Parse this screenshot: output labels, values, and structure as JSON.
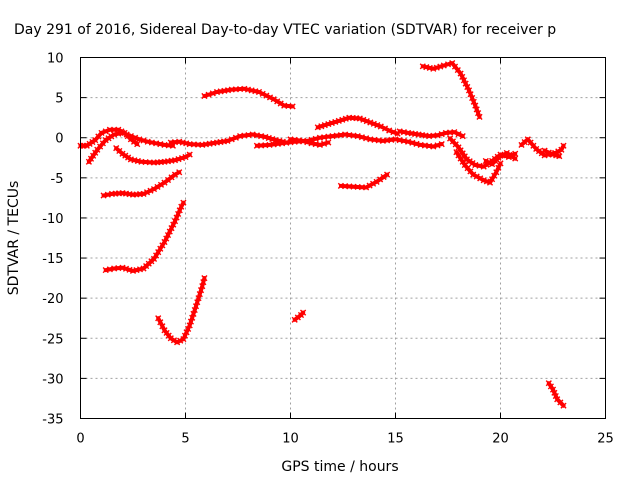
{
  "chart_data": {
    "type": "scatter",
    "title": "Day 291 of 2016, Sidereal Day-to-day VTEC variation (SDTVAR) for receiver p",
    "xlabel": "GPS time / hours",
    "ylabel": "SDTVAR / TECUs",
    "xlim": [
      0,
      25
    ],
    "ylim": [
      -35,
      10
    ],
    "x_ticks": [
      0,
      5,
      10,
      15,
      20,
      25
    ],
    "y_ticks": [
      -35,
      -30,
      -25,
      -20,
      -15,
      -10,
      -5,
      0,
      5,
      10
    ],
    "grid": true,
    "marker": "cross",
    "color": "#ff0000",
    "tracks": [
      [
        [
          0.0,
          -1.0
        ],
        [
          0.3,
          -1.0
        ],
        [
          0.7,
          -0.3
        ],
        [
          1.0,
          0.6
        ],
        [
          1.4,
          1.0
        ],
        [
          1.8,
          1.0
        ],
        [
          2.1,
          0.6
        ],
        [
          2.4,
          -0.2
        ],
        [
          2.7,
          -0.8
        ]
      ],
      [
        [
          0.4,
          -3.0
        ],
        [
          0.8,
          -1.5
        ],
        [
          1.2,
          -0.3
        ],
        [
          1.6,
          0.4
        ],
        [
          2.0,
          0.6
        ],
        [
          2.4,
          0.2
        ],
        [
          2.8,
          -0.2
        ],
        [
          3.2,
          -0.5
        ],
        [
          3.6,
          -0.7
        ],
        [
          4.0,
          -0.9
        ],
        [
          4.4,
          -1.0
        ]
      ],
      [
        [
          1.7,
          -1.3
        ],
        [
          2.0,
          -2.0
        ],
        [
          2.4,
          -2.7
        ],
        [
          2.9,
          -3.0
        ],
        [
          3.5,
          -3.1
        ],
        [
          4.0,
          -3.0
        ],
        [
          4.5,
          -2.8
        ],
        [
          5.0,
          -2.4
        ],
        [
          5.2,
          -2.1
        ]
      ],
      [
        [
          1.1,
          -7.2
        ],
        [
          1.5,
          -7.0
        ],
        [
          2.0,
          -6.9
        ],
        [
          2.5,
          -7.1
        ],
        [
          3.0,
          -7.0
        ],
        [
          3.5,
          -6.4
        ],
        [
          4.0,
          -5.6
        ],
        [
          4.5,
          -4.6
        ],
        [
          4.7,
          -4.3
        ]
      ],
      [
        [
          1.2,
          -16.5
        ],
        [
          1.6,
          -16.3
        ],
        [
          2.0,
          -16.2
        ],
        [
          2.5,
          -16.6
        ],
        [
          3.0,
          -16.3
        ],
        [
          3.5,
          -15.1
        ],
        [
          4.0,
          -13.0
        ],
        [
          4.5,
          -10.4
        ],
        [
          4.8,
          -8.6
        ],
        [
          4.9,
          -8.1
        ]
      ],
      [
        [
          3.7,
          -22.5
        ],
        [
          4.0,
          -24.0
        ],
        [
          4.3,
          -25.0
        ],
        [
          4.6,
          -25.5
        ],
        [
          4.9,
          -25.1
        ],
        [
          5.2,
          -23.4
        ],
        [
          5.5,
          -21.0
        ],
        [
          5.8,
          -18.5
        ],
        [
          5.9,
          -17.5
        ]
      ],
      [
        [
          4.3,
          -0.6
        ],
        [
          4.7,
          -0.5
        ],
        [
          5.2,
          -0.8
        ],
        [
          5.8,
          -0.9
        ],
        [
          6.5,
          -0.6
        ],
        [
          7.0,
          -0.4
        ],
        [
          7.6,
          0.2
        ],
        [
          8.2,
          0.4
        ],
        [
          8.8,
          0.1
        ],
        [
          9.3,
          -0.3
        ],
        [
          9.8,
          -0.6
        ]
      ],
      [
        [
          5.9,
          5.2
        ],
        [
          6.5,
          5.7
        ],
        [
          7.2,
          6.0
        ],
        [
          7.8,
          6.1
        ],
        [
          8.5,
          5.7
        ],
        [
          9.2,
          4.8
        ],
        [
          9.7,
          4.0
        ],
        [
          10.1,
          3.9
        ]
      ],
      [
        [
          8.4,
          -1.0
        ],
        [
          9.0,
          -0.9
        ],
        [
          9.6,
          -0.7
        ],
        [
          10.2,
          -0.5
        ],
        [
          10.8,
          -0.4
        ],
        [
          11.4,
          0.0
        ],
        [
          12.0,
          0.2
        ],
        [
          12.6,
          0.4
        ],
        [
          13.2,
          0.2
        ],
        [
          13.8,
          -0.2
        ],
        [
          14.4,
          -0.4
        ],
        [
          15.0,
          -0.2
        ],
        [
          15.6,
          -0.5
        ],
        [
          16.2,
          -0.9
        ],
        [
          16.8,
          -1.1
        ],
        [
          17.2,
          -0.8
        ]
      ],
      [
        [
          10.0,
          -0.2
        ],
        [
          10.6,
          -0.4
        ],
        [
          11.0,
          -0.7
        ],
        [
          11.4,
          -0.9
        ],
        [
          11.8,
          -0.6
        ]
      ],
      [
        [
          11.3,
          1.3
        ],
        [
          11.8,
          1.7
        ],
        [
          12.3,
          2.1
        ],
        [
          12.8,
          2.5
        ],
        [
          13.3,
          2.4
        ],
        [
          13.8,
          1.9
        ],
        [
          14.3,
          1.4
        ],
        [
          14.7,
          0.9
        ],
        [
          15.1,
          0.5
        ]
      ],
      [
        [
          15.2,
          0.8
        ],
        [
          15.6,
          0.6
        ],
        [
          16.1,
          0.4
        ],
        [
          16.6,
          0.2
        ],
        [
          17.0,
          0.3
        ],
        [
          17.4,
          0.6
        ],
        [
          17.8,
          0.7
        ],
        [
          18.2,
          0.2
        ]
      ],
      [
        [
          12.4,
          -6.0
        ],
        [
          13.0,
          -6.1
        ],
        [
          13.6,
          -6.2
        ],
        [
          14.1,
          -5.5
        ],
        [
          14.6,
          -4.6
        ]
      ],
      [
        [
          10.2,
          -22.7
        ],
        [
          10.5,
          -22.1
        ],
        [
          10.6,
          -21.8
        ]
      ],
      [
        [
          16.3,
          8.9
        ],
        [
          16.8,
          8.6
        ],
        [
          17.3,
          9.0
        ],
        [
          17.7,
          9.3
        ],
        [
          18.1,
          8.0
        ],
        [
          18.5,
          5.9
        ],
        [
          18.8,
          4.0
        ],
        [
          19.0,
          2.6
        ]
      ],
      [
        [
          17.6,
          -0.1
        ],
        [
          18.0,
          -1.2
        ],
        [
          18.4,
          -2.7
        ],
        [
          18.8,
          -3.4
        ],
        [
          19.2,
          -3.6
        ],
        [
          19.6,
          -2.9
        ],
        [
          20.0,
          -2.1
        ],
        [
          20.4,
          -2.4
        ],
        [
          20.7,
          -2.0
        ]
      ],
      [
        [
          17.9,
          -1.8
        ],
        [
          18.3,
          -3.4
        ],
        [
          18.7,
          -4.6
        ],
        [
          19.2,
          -5.3
        ],
        [
          19.5,
          -5.6
        ],
        [
          19.8,
          -4.3
        ],
        [
          20.0,
          -3.2
        ]
      ],
      [
        [
          19.3,
          -2.9
        ],
        [
          19.6,
          -3.3
        ],
        [
          19.9,
          -2.5
        ],
        [
          20.3,
          -1.9
        ],
        [
          20.7,
          -2.6
        ]
      ],
      [
        [
          21.0,
          -0.9
        ],
        [
          21.3,
          -0.2
        ],
        [
          21.7,
          -1.4
        ],
        [
          22.1,
          -2.2
        ],
        [
          22.6,
          -1.9
        ],
        [
          22.9,
          -1.5
        ],
        [
          23.0,
          -1.0
        ]
      ],
      [
        [
          22.1,
          -1.6
        ],
        [
          22.5,
          -2.1
        ],
        [
          22.8,
          -2.3
        ]
      ],
      [
        [
          22.3,
          -30.6
        ],
        [
          22.5,
          -31.4
        ],
        [
          22.7,
          -32.6
        ],
        [
          23.0,
          -33.4
        ]
      ]
    ]
  }
}
